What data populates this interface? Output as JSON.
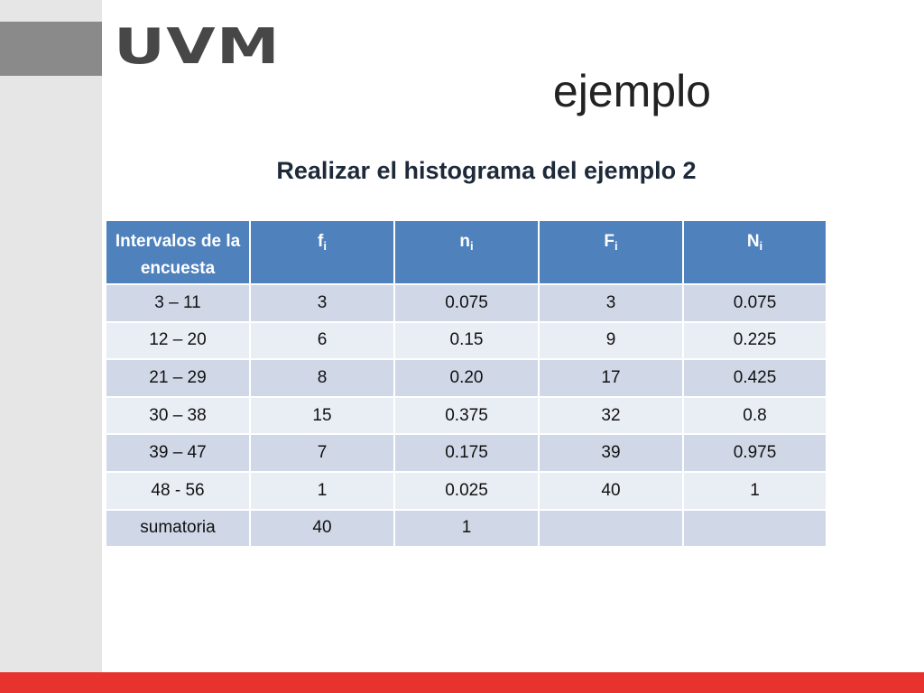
{
  "brand": {
    "logo_text": "UVM"
  },
  "slide": {
    "title": "ejemplo",
    "subtitle": "Realizar el histograma del ejemplo 2"
  },
  "table": {
    "headers": [
      {
        "main": "Intervalos de la encuesta",
        "sub": ""
      },
      {
        "main": "f",
        "sub": "i"
      },
      {
        "main": "n",
        "sub": "i"
      },
      {
        "main": "F",
        "sub": "i"
      },
      {
        "main": "N",
        "sub": "i"
      }
    ],
    "rows": [
      [
        "3 – 11",
        "3",
        "0.075",
        "3",
        "0.075"
      ],
      [
        "12 – 20",
        "6",
        "0.15",
        "9",
        "0.225"
      ],
      [
        "21 – 29",
        "8",
        "0.20",
        "17",
        "0.425"
      ],
      [
        "30 – 38",
        "15",
        "0.375",
        "32",
        "0.8"
      ],
      [
        "39 – 47",
        "7",
        "0.175",
        "39",
        "0.975"
      ],
      [
        "48 - 56",
        "1",
        "0.025",
        "40",
        "1"
      ],
      [
        "sumatoria",
        "40",
        "1",
        "",
        ""
      ]
    ]
  },
  "colors": {
    "header_bg": "#4f81bd",
    "row_odd": "#d0d8e8",
    "row_even": "#e9edf4",
    "accent_bar": "#e8322d"
  }
}
